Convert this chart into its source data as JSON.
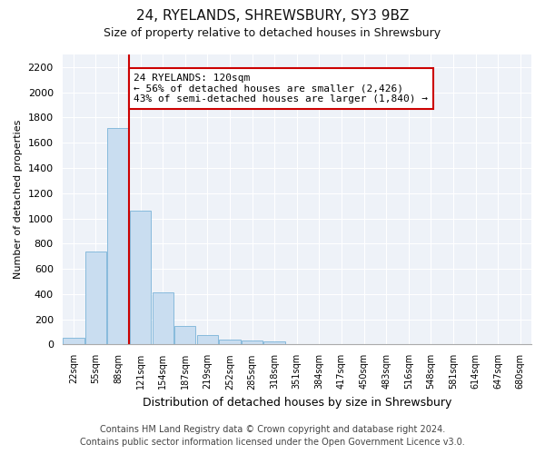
{
  "title": "24, RYELANDS, SHREWSBURY, SY3 9BZ",
  "subtitle": "Size of property relative to detached houses in Shrewsbury",
  "xlabel": "Distribution of detached houses by size in Shrewsbury",
  "ylabel": "Number of detached properties",
  "categories": [
    "22sqm",
    "55sqm",
    "88sqm",
    "121sqm",
    "154sqm",
    "187sqm",
    "219sqm",
    "252sqm",
    "285sqm",
    "318sqm",
    "351sqm",
    "384sqm",
    "417sqm",
    "450sqm",
    "483sqm",
    "516sqm",
    "548sqm",
    "581sqm",
    "614sqm",
    "647sqm",
    "680sqm"
  ],
  "bar_values": [
    50,
    740,
    1720,
    1060,
    415,
    150,
    75,
    40,
    30,
    22,
    0,
    0,
    0,
    0,
    0,
    0,
    0,
    0,
    0,
    0,
    0
  ],
  "bar_color": "#c9ddf0",
  "bar_edge_color": "#7ab3d8",
  "vline_color": "#cc0000",
  "annotation_text": "24 RYELANDS: 120sqm\n← 56% of detached houses are smaller (2,426)\n43% of semi-detached houses are larger (1,840) →",
  "annotation_box_color": "#ffffff",
  "annotation_box_edge": "#cc0000",
  "ylim": [
    0,
    2300
  ],
  "yticks": [
    0,
    200,
    400,
    600,
    800,
    1000,
    1200,
    1400,
    1600,
    1800,
    2000,
    2200
  ],
  "footer_line1": "Contains HM Land Registry data © Crown copyright and database right 2024.",
  "footer_line2": "Contains public sector information licensed under the Open Government Licence v3.0.",
  "bg_color": "#eef2f8",
  "grid_color": "#ffffff",
  "title_fontsize": 11,
  "subtitle_fontsize": 9,
  "annotation_fontsize": 8,
  "footer_fontsize": 7,
  "ylabel_fontsize": 8,
  "xlabel_fontsize": 9
}
